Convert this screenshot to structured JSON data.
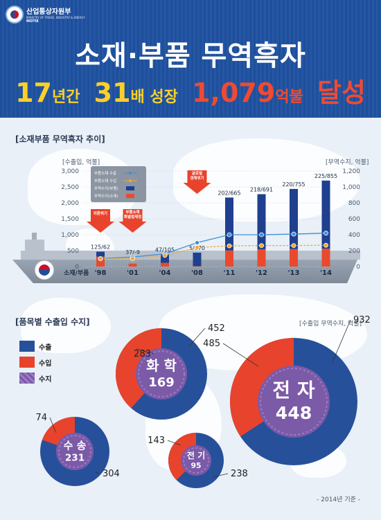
{
  "header": {
    "ministry_ko": "산업통상자원부",
    "ministry_en": "MINISTRY OF TRADE, INDUSTRY & ENERGY",
    "ministry_abbr": "MOTIE",
    "title": "소재·부품 무역흑자",
    "sub_years": "17",
    "sub_years_unit": "년간",
    "sub_times": "31",
    "sub_times_unit": "배 성장",
    "sub_amount": "1,079",
    "sub_amount_unit": "억불",
    "sub_achieve": "달성"
  },
  "trend": {
    "section_title": "[소재부품 무역흑자 추이]",
    "left_unit": "[수출입, 억불]",
    "right_unit": "[무역수지, 억불]",
    "row_label": "소재/부품",
    "legend": [
      "부품소재 수출",
      "부품소재 수입",
      "무역수지(부품)",
      "무역수지(소재)"
    ],
    "callouts": [
      "외환위기",
      "부품소재\n특별법제정",
      "글로벌\n경제위기"
    ]
  },
  "donut_section": {
    "title": "[품목별 수출입 수지]",
    "unit": "[수출입 무역수지, 억불]",
    "legend": [
      "수출",
      "수입",
      "수지"
    ],
    "footnote": "- 2014년 기준 -"
  },
  "chart_data": [
    {
      "type": "bar",
      "categories": [
        "'98",
        "'01",
        "'04",
        "'08",
        "'11",
        "'12",
        "'13",
        "'14"
      ],
      "left_ylim": [
        0,
        3000
      ],
      "left_ticks": [
        "3,000",
        "2,500",
        "2,000",
        "1,500",
        "1,000",
        "500",
        "0"
      ],
      "right_ylim": [
        0,
        1200
      ],
      "right_ticks": [
        "1,200",
        "1,000",
        "800",
        "600",
        "400",
        "200",
        "0"
      ],
      "bar_labels": [
        "125/62",
        "37/-9",
        "47/105",
        "5/170",
        "202/665",
        "218/691",
        "220/755",
        "225/855"
      ],
      "series": [
        {
          "name": "부품소재 수출",
          "axis": "left",
          "kind": "line",
          "color": "#3f8fd8",
          "values": [
            250,
            300,
            400,
            750,
            1000,
            1000,
            1020,
            1050
          ]
        },
        {
          "name": "부품소재 수입",
          "axis": "left",
          "kind": "line",
          "color": "#f0a830",
          "values": [
            250,
            250,
            350,
            600,
            650,
            660,
            660,
            670
          ]
        },
        {
          "name": "무역수지(부품)",
          "axis": "right",
          "kind": "bar",
          "color": "#1f3f8f",
          "values": [
            62,
            -9,
            105,
            170,
            665,
            691,
            755,
            855
          ]
        },
        {
          "name": "무역수지(소재)",
          "axis": "right",
          "kind": "bar",
          "color": "#e94a2e",
          "values": [
            125,
            37,
            47,
            5,
            202,
            218,
            220,
            225
          ]
        }
      ]
    },
    {
      "type": "pie",
      "items": [
        {
          "name": "화학",
          "export": 452,
          "import": 283,
          "balance": 169
        },
        {
          "name": "전자",
          "export": 932,
          "import": 485,
          "balance": 448
        },
        {
          "name": "수송",
          "export": 304,
          "import": 74,
          "balance": 231
        },
        {
          "name": "전기",
          "export": 238,
          "import": 143,
          "balance": 95
        }
      ],
      "colors": {
        "export": "#27509a",
        "import": "#e8432c",
        "balance": "#7b5aa8"
      }
    }
  ]
}
